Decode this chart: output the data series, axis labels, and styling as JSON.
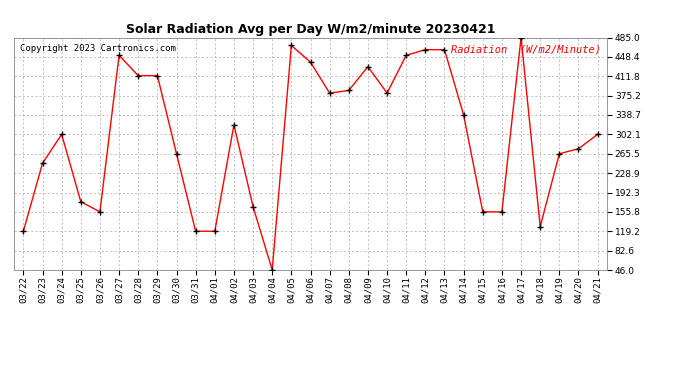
{
  "title": "Solar Radiation Avg per Day W/m2/minute 20230421",
  "copyright": "Copyright 2023 Cartronics.com",
  "legend_label": "Radiation  (W/m2/Minute)",
  "dates": [
    "03/22",
    "03/23",
    "03/24",
    "03/25",
    "03/26",
    "03/27",
    "03/28",
    "03/29",
    "03/30",
    "03/31",
    "04/01",
    "04/02",
    "04/03",
    "04/04",
    "04/05",
    "04/06",
    "04/07",
    "04/08",
    "04/09",
    "04/10",
    "04/11",
    "04/12",
    "04/13",
    "04/14",
    "04/15",
    "04/16",
    "04/17",
    "04/18",
    "04/19",
    "04/20",
    "04/21"
  ],
  "values": [
    119.2,
    247.5,
    302.1,
    175.0,
    155.8,
    451.4,
    413.0,
    413.0,
    265.5,
    119.2,
    119.2,
    320.0,
    165.5,
    46.0,
    470.0,
    438.5,
    380.0,
    385.0,
    430.0,
    380.0,
    451.4,
    462.0,
    462.0,
    338.7,
    155.8,
    155.8,
    485.0,
    128.0,
    265.5,
    275.0,
    302.1
  ],
  "ymin": 46.0,
  "ymax": 485.0,
  "yticks": [
    485.0,
    448.4,
    411.8,
    375.2,
    338.7,
    302.1,
    265.5,
    228.9,
    192.3,
    155.8,
    119.2,
    82.6,
    46.0
  ],
  "line_color": "red",
  "marker_color": "black",
  "grid_color": "#aaaaaa",
  "bg_color": "white",
  "title_fontsize": 9,
  "copyright_fontsize": 6.5,
  "legend_fontsize": 7.5,
  "tick_fontsize": 6.5
}
